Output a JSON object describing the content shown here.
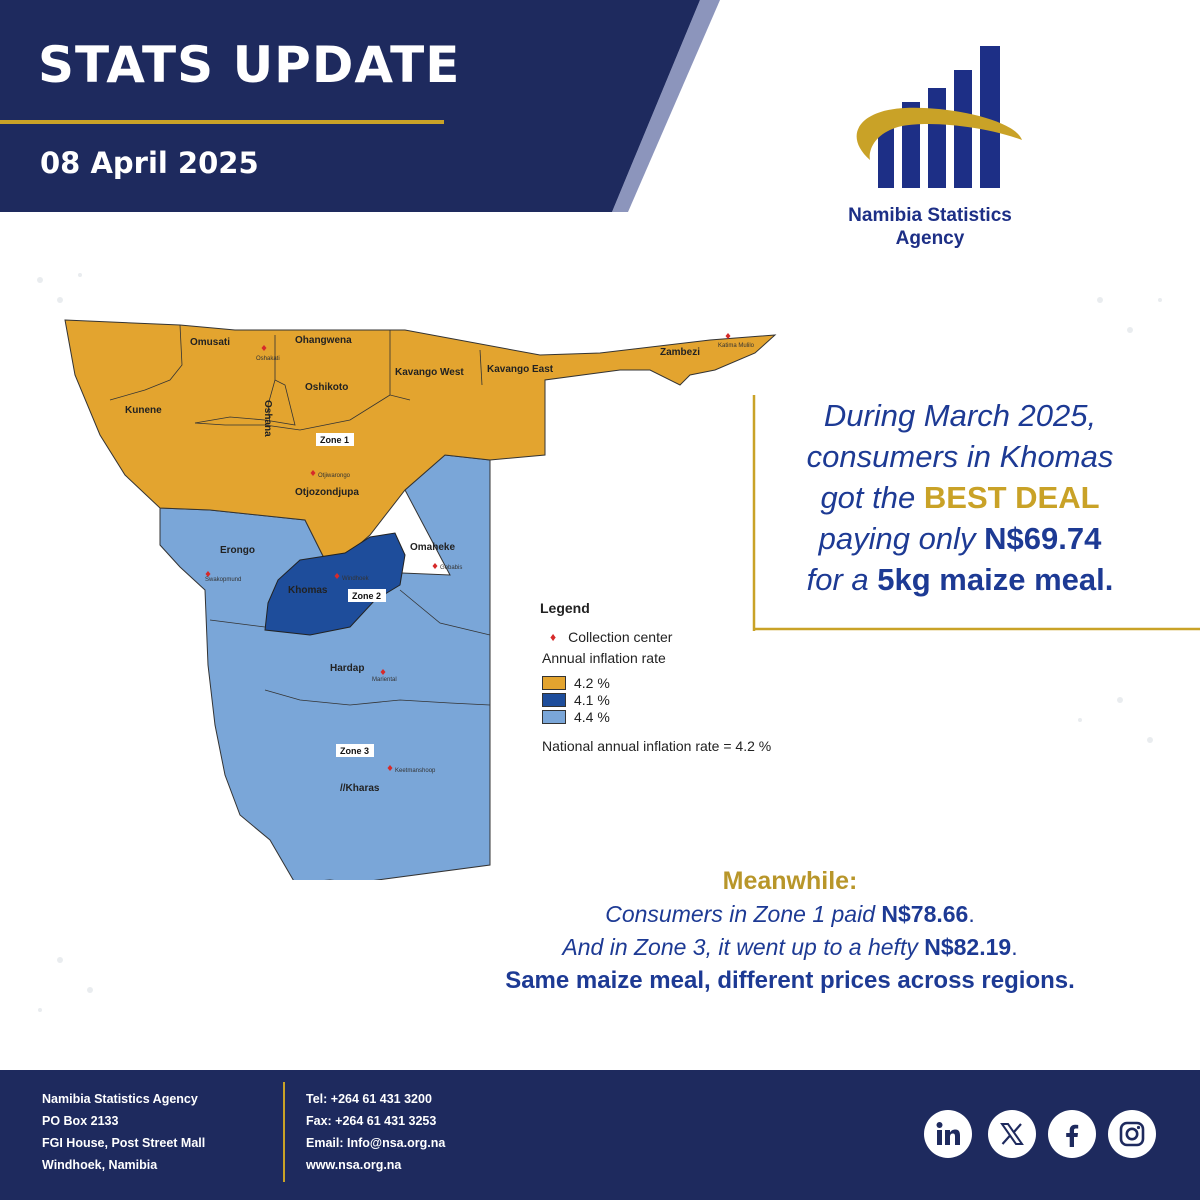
{
  "header": {
    "title": "STATS UPDATE",
    "date": "08 April 2025"
  },
  "logo": {
    "name_line1": "Namibia Statistics",
    "name_line2": "Agency"
  },
  "map": {
    "regions": {
      "omusati": "Omusati",
      "ohangwena": "Ohangwena",
      "oshana": "Oshana",
      "oshikoto": "Oshikoto",
      "kavango_west": "Kavango West",
      "kavango_east": "Kavango East",
      "zambezi": "Zambezi",
      "kunene": "Kunene",
      "otjozondjupa": "Otjozondjupa",
      "erongo": "Erongo",
      "omaheke": "Omaheke",
      "khomas": "Khomas",
      "hardap": "Hardap",
      "kharas": "//Kharas"
    },
    "zones": {
      "zone1": "Zone 1",
      "zone2": "Zone 2",
      "zone3": "Zone 3"
    },
    "centers": {
      "oshakati": "Oshakati",
      "otjiwarongo": "Otjiwarongo",
      "katima_mulilo": "Katima Mulilo",
      "swakopmund": "Swakopmund",
      "windhoek": "Windhoek",
      "gobabis": "Gobabis",
      "mariental": "Mariental",
      "keetmanshoop": "Keetmanshoop"
    },
    "colors": {
      "zone1": "#e3a42f",
      "zone2": "#1e4d9b",
      "zone3": "#7aa6d8",
      "collection_center": "#d62a2a"
    }
  },
  "legend": {
    "title": "Legend",
    "collection_center": "Collection center",
    "rate_heading": "Annual inflation rate",
    "items": [
      {
        "label": "4.2 %",
        "color": "#e3a42f"
      },
      {
        "label": "4.1 %",
        "color": "#1e4d9b"
      },
      {
        "label": "4.4 %",
        "color": "#7aa6d8"
      }
    ],
    "national": "National annual inflation rate = 4.2 %"
  },
  "callout": {
    "line1": "During March 2025,",
    "line2": "consumers in Khomas",
    "line3_pre": "got the",
    "line3_highlight": "BEST DEAL",
    "line4_pre": "paying only",
    "line4_price": "N$69.74",
    "line5_pre": "for a",
    "line5_item": "5kg maize meal."
  },
  "meanwhile": {
    "title": "Meanwhile:",
    "line1_text": "Consumers in Zone 1 paid",
    "line1_price": "N$78.66",
    "line1_end": ".",
    "line2_text": "And in Zone 3, it went up to a hefty",
    "line2_price": "N$82.19",
    "line2_end": ".",
    "line3": "Same maize meal, different prices across regions."
  },
  "footer": {
    "address": [
      "Namibia Statistics Agency",
      "PO Box 2133",
      "FGI House, Post Street Mall",
      "Windhoek, Namibia"
    ],
    "contacts": [
      "Tel: +264 61 431 3200",
      "Fax: +264 61 431 3253",
      "Email: Info@nsa.org.na",
      "www.nsa.org.na"
    ],
    "social": [
      "linkedin-icon",
      "x-icon",
      "facebook-icon",
      "instagram-icon"
    ]
  },
  "theme": {
    "navy": "#1e2a5e",
    "gold": "#c9a227",
    "blue_text": "#1d3a94"
  }
}
